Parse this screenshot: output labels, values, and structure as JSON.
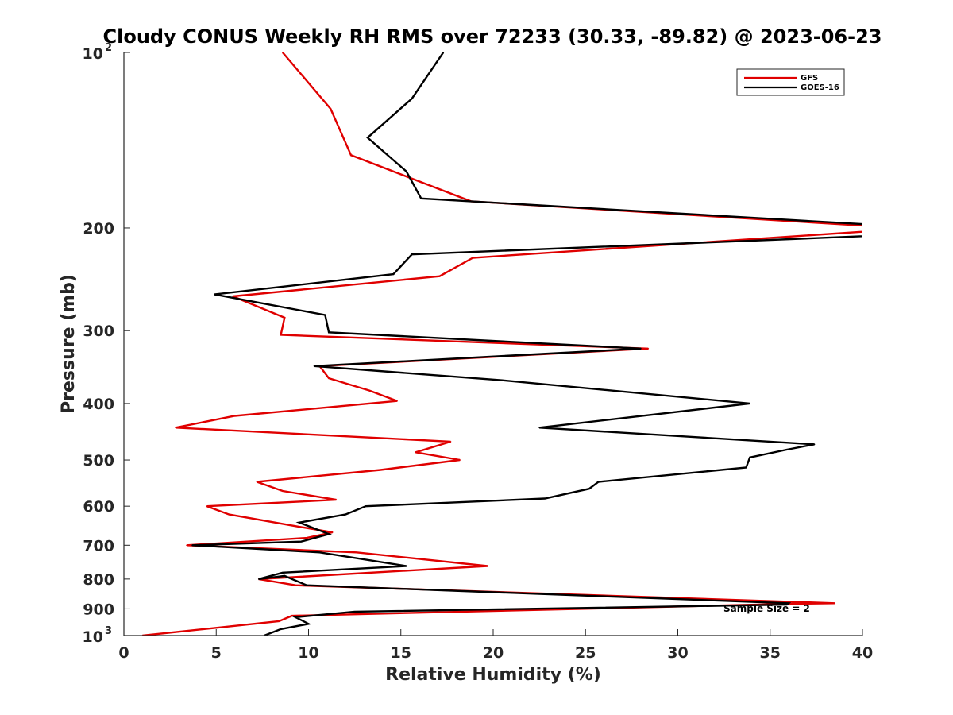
{
  "chart_data": {
    "type": "line",
    "title": "Cloudy CONUS Weekly RH RMS over 72233 (30.33, -89.82) @ 2023-06-23",
    "xlabel": "Relative Humidity (%)",
    "ylabel": "Pressure (mb)",
    "xlim": [
      0,
      40
    ],
    "ylim": [
      100,
      1000
    ],
    "yscale": "log",
    "y_reversed": true,
    "grid": false,
    "legend_position": "top-right",
    "x_ticks": [
      "0",
      "5",
      "10",
      "15",
      "20",
      "25",
      "30",
      "35",
      "40"
    ],
    "y_ticks": [
      {
        "value": 100,
        "base": "10",
        "exp": "2"
      },
      {
        "value": 200,
        "label": "200"
      },
      {
        "value": 300,
        "label": "300"
      },
      {
        "value": 400,
        "label": "400"
      },
      {
        "value": 500,
        "label": "500"
      },
      {
        "value": 600,
        "label": "600"
      },
      {
        "value": 700,
        "label": "700"
      },
      {
        "value": 800,
        "label": "800"
      },
      {
        "value": 900,
        "label": "900"
      },
      {
        "value": 1000,
        "base": "10",
        "exp": "3"
      }
    ],
    "annotation": "Sample Size = 2",
    "series": [
      {
        "name": "GFS",
        "color": "#e00000",
        "points": [
          [
            8.6,
            100
          ],
          [
            11.2,
            125
          ],
          [
            12.3,
            150
          ],
          [
            18.8,
            180
          ],
          [
            41,
            199
          ],
          [
            40,
            203
          ],
          [
            18.9,
            225
          ],
          [
            17.1,
            242
          ],
          [
            5.9,
            262
          ],
          [
            8.7,
            285
          ],
          [
            8.5,
            305
          ],
          [
            28.4,
            322
          ],
          [
            10.6,
            345
          ],
          [
            11.1,
            362
          ],
          [
            13.3,
            380
          ],
          [
            14.8,
            396
          ],
          [
            6.0,
            420
          ],
          [
            2.8,
            440
          ],
          [
            17.7,
            465
          ],
          [
            15.8,
            485
          ],
          [
            18.2,
            500
          ],
          [
            13.9,
            520
          ],
          [
            7.2,
            545
          ],
          [
            8.6,
            565
          ],
          [
            11.5,
            585
          ],
          [
            4.5,
            600
          ],
          [
            5.7,
            620
          ],
          [
            9.4,
            650
          ],
          [
            11.3,
            665
          ],
          [
            9.9,
            680
          ],
          [
            3.4,
            700
          ],
          [
            12.6,
            720
          ],
          [
            19.7,
            760
          ],
          [
            7.3,
            800
          ],
          [
            9.3,
            820
          ],
          [
            38.5,
            880
          ],
          [
            36.2,
            882
          ],
          [
            9.1,
            925
          ],
          [
            8.4,
            945
          ],
          [
            1.0,
            1000
          ]
        ]
      },
      {
        "name": "GOES-16",
        "color": "#000000",
        "points": [
          [
            17.3,
            100
          ],
          [
            15.6,
            120
          ],
          [
            13.2,
            140
          ],
          [
            15.3,
            160
          ],
          [
            16.1,
            178
          ],
          [
            40,
            197
          ],
          [
            41,
            206
          ],
          [
            15.6,
            222
          ],
          [
            14.6,
            240
          ],
          [
            4.9,
            260
          ],
          [
            10.9,
            282
          ],
          [
            11.1,
            302
          ],
          [
            28.0,
            322
          ],
          [
            10.3,
            345
          ],
          [
            20.5,
            365
          ],
          [
            33.9,
            400
          ],
          [
            22.5,
            440
          ],
          [
            37.4,
            470
          ],
          [
            35.9,
            480
          ],
          [
            33.9,
            495
          ],
          [
            33.7,
            515
          ],
          [
            25.7,
            545
          ],
          [
            25.2,
            560
          ],
          [
            22.8,
            582
          ],
          [
            13.1,
            600
          ],
          [
            12.0,
            620
          ],
          [
            9.5,
            640
          ],
          [
            11.1,
            670
          ],
          [
            9.6,
            690
          ],
          [
            3.7,
            700
          ],
          [
            10.6,
            720
          ],
          [
            15.3,
            760
          ],
          [
            8.6,
            780
          ],
          [
            7.3,
            800
          ],
          [
            8.7,
            790
          ],
          [
            9.9,
            820
          ],
          [
            36.0,
            880
          ],
          [
            35.9,
            885
          ],
          [
            12.5,
            910
          ],
          [
            9.3,
            930
          ],
          [
            10.0,
            955
          ],
          [
            8.5,
            975
          ],
          [
            7.6,
            1000
          ]
        ]
      }
    ]
  }
}
